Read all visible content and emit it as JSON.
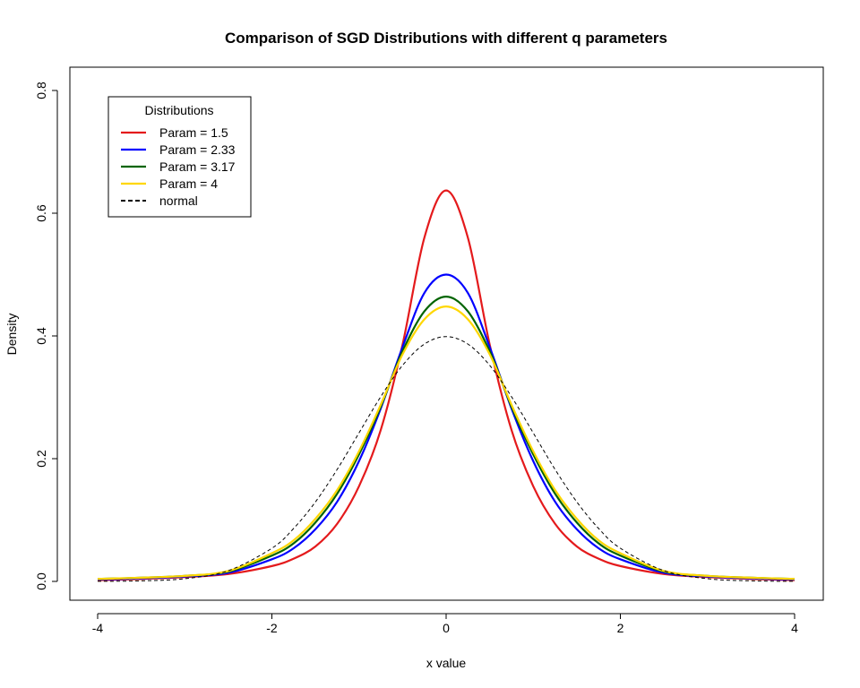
{
  "chart_data": {
    "type": "line",
    "title": "Comparison of SGD Distributions with different q parameters",
    "xlabel": "x value",
    "ylabel": "Density",
    "xlim": [
      -4,
      4
    ],
    "ylim": [
      0,
      0.8
    ],
    "x_ticks": [
      -4,
      -2,
      0,
      2,
      4
    ],
    "y_ticks": [
      0.0,
      0.2,
      0.4,
      0.6,
      0.8
    ],
    "x_tick_labels": [
      "-4",
      "-2",
      "0",
      "2",
      "4"
    ],
    "y_tick_labels": [
      "0.0",
      "0.2",
      "0.4",
      "0.6",
      "0.8"
    ],
    "grid": false,
    "legend": {
      "title": "Distributions",
      "position": "top-left"
    },
    "x": [
      -4,
      -3.5,
      -3,
      -2.5,
      -2,
      -1.75,
      -1.5,
      -1.25,
      -1,
      -0.75,
      -0.5,
      -0.25,
      0,
      0.25,
      0.5,
      0.75,
      1,
      1.25,
      1.5,
      1.75,
      2,
      2.5,
      3,
      3.5,
      4
    ],
    "series": [
      {
        "name": "Param = 1.5",
        "color": "#e41a1c",
        "dash": "solid",
        "values": [
          0.002,
          0.004,
          0.007,
          0.012,
          0.025,
          0.037,
          0.057,
          0.094,
          0.155,
          0.247,
          0.386,
          0.56,
          0.637,
          0.56,
          0.386,
          0.247,
          0.155,
          0.094,
          0.057,
          0.037,
          0.025,
          0.012,
          0.007,
          0.004,
          0.002
        ]
      },
      {
        "name": "Param = 2.33",
        "color": "#0000ff",
        "dash": "solid",
        "values": [
          0.003,
          0.005,
          0.008,
          0.014,
          0.036,
          0.054,
          0.085,
          0.13,
          0.196,
          0.282,
          0.382,
          0.47,
          0.5,
          0.47,
          0.382,
          0.282,
          0.196,
          0.13,
          0.085,
          0.054,
          0.036,
          0.014,
          0.008,
          0.005,
          0.003
        ]
      },
      {
        "name": "Param = 3.17",
        "color": "#006400",
        "dash": "solid",
        "values": [
          0.004,
          0.006,
          0.009,
          0.016,
          0.042,
          0.062,
          0.096,
          0.143,
          0.207,
          0.285,
          0.375,
          0.44,
          0.464,
          0.44,
          0.375,
          0.285,
          0.207,
          0.143,
          0.096,
          0.062,
          0.042,
          0.016,
          0.009,
          0.006,
          0.004
        ]
      },
      {
        "name": "Param = 4",
        "color": "#ffd700",
        "dash": "solid",
        "values": [
          0.004,
          0.006,
          0.009,
          0.017,
          0.046,
          0.067,
          0.102,
          0.149,
          0.212,
          0.288,
          0.37,
          0.427,
          0.448,
          0.427,
          0.37,
          0.288,
          0.212,
          0.149,
          0.102,
          0.067,
          0.046,
          0.017,
          0.009,
          0.006,
          0.004
        ]
      },
      {
        "name": "normal",
        "color": "#000000",
        "dash": "dashed",
        "values": [
          0.0001,
          0.0009,
          0.0044,
          0.0175,
          0.054,
          0.0863,
          0.1295,
          0.1826,
          0.242,
          0.3011,
          0.3521,
          0.3867,
          0.3989,
          0.3867,
          0.3521,
          0.3011,
          0.242,
          0.1826,
          0.1295,
          0.0863,
          0.054,
          0.0175,
          0.0044,
          0.0009,
          0.0001
        ]
      }
    ]
  }
}
